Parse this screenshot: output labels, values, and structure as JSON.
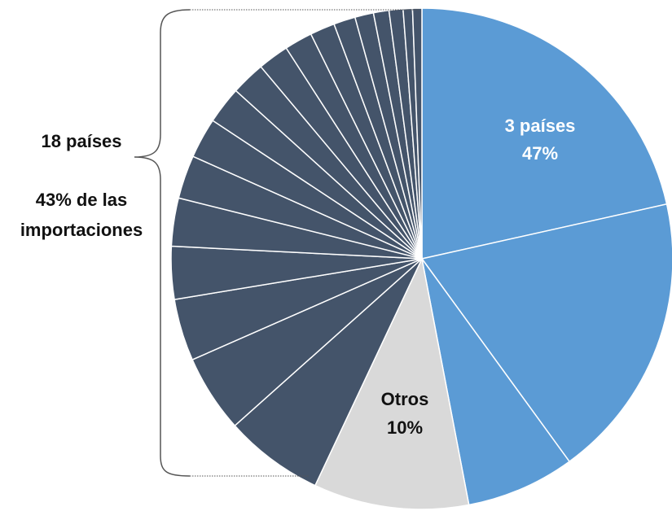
{
  "chart_data": {
    "type": "pie",
    "categories": [
      null,
      null,
      null,
      null,
      null,
      null,
      null,
      null,
      null,
      null,
      null,
      null,
      null,
      null,
      null,
      null,
      null,
      null,
      null,
      null,
      null,
      null
    ],
    "values": [
      21.5,
      18.5,
      7,
      10,
      6.4,
      5.0,
      4.0,
      3.4,
      3.1,
      2.8,
      2.6,
      2.4,
      2.2,
      2.0,
      1.8,
      1.6,
      1.4,
      1.2,
      1.0,
      0.9,
      0.6,
      0.6
    ],
    "colors": [
      "#5b9bd5",
      "#5b9bd5",
      "#5b9bd5",
      "#d9d9d9",
      "#44546a",
      "#44546a",
      "#44546a",
      "#44546a",
      "#44546a",
      "#44546a",
      "#44546a",
      "#44546a",
      "#44546a",
      "#44546a",
      "#44546a",
      "#44546a",
      "#44546a",
      "#44546a",
      "#44546a",
      "#44546a",
      "#44546a",
      "#44546a"
    ],
    "annotations": [
      "3 países",
      "47%",
      "Otros",
      "10%",
      "18 países",
      "43% de las",
      "importaciones"
    ]
  }
}
